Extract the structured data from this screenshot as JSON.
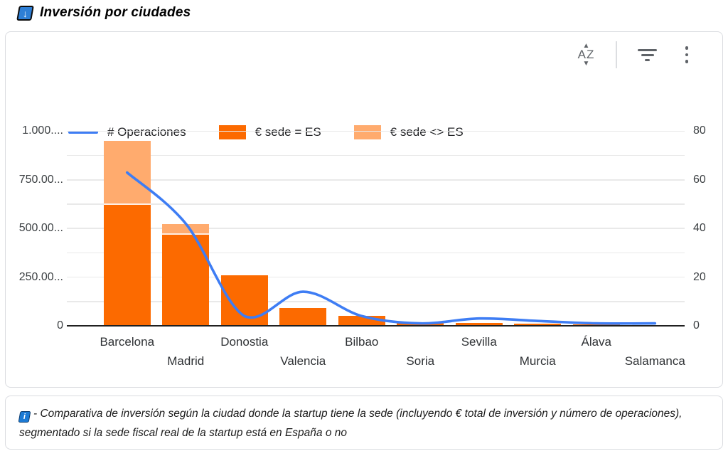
{
  "title": {
    "text": "Inversión por ciudades",
    "icon": "blue-down-arrow"
  },
  "toolbar": {
    "sort_label": "AZ",
    "sort_tooltip": "sort",
    "icons": [
      "sort-az-icon",
      "filter-icon",
      "more-vertical-icon"
    ]
  },
  "chart_data": {
    "type": "bar",
    "subtype": "stacked-bar-with-line-combo",
    "categories": [
      "Barcelona",
      "Madrid",
      "Donostia",
      "Valencia",
      "Bilbao",
      "Soria",
      "Sevilla",
      "Murcia",
      "Álava",
      "Salamanca"
    ],
    "series": [
      {
        "name": "€ sede = ES",
        "type": "bar",
        "color": "#FC6A00",
        "axis": "left",
        "values": [
          620000,
          468000,
          260000,
          90000,
          50000,
          20000,
          16000,
          10000,
          7000,
          5000
        ]
      },
      {
        "name": "€ sede <> ES",
        "type": "bar",
        "color": "#FFAB6E",
        "axis": "left",
        "values": [
          330000,
          55000,
          0,
          0,
          0,
          0,
          0,
          0,
          0,
          0
        ]
      },
      {
        "name": "# Operaciones",
        "type": "line",
        "color": "#3E7DF4",
        "axis": "right",
        "values": [
          63,
          42,
          4,
          14,
          4,
          1,
          3,
          2,
          1,
          1
        ]
      }
    ],
    "left_axis": {
      "tick_labels": [
        "0",
        "250.00...",
        "500.00...",
        "750.00...",
        "1.000...."
      ],
      "tick_values": [
        0,
        250000,
        500000,
        750000,
        1000000
      ],
      "max": 1000000,
      "minor_step": 125000
    },
    "right_axis": {
      "tick_labels": [
        "0",
        "20",
        "40",
        "60",
        "80"
      ],
      "tick_values": [
        0,
        20,
        40,
        60,
        80
      ],
      "max": 80
    },
    "stacked": true,
    "grid": true,
    "legend_position": "top-left",
    "title": "Inversión por ciudades"
  },
  "footer": {
    "icon": "info",
    "note": "- Comparativa de inversión según la ciudad donde la startup tiene la sede (incluyendo € total de inversión y número de operaciones), segmentado si la sede fiscal real de la startup está en España o no"
  },
  "colors": {
    "bar_es": "#FC6A00",
    "bar_non_es": "#FFAB6E",
    "line": "#3E7DF4",
    "grid": "#E9E9E9",
    "axis_text": "#3C4043",
    "card_border": "#DADCE0",
    "icon_gray": "#5F6368",
    "title_icon_blue": "#2E7FD6",
    "info_icon_blue": "#1C7AD4"
  }
}
